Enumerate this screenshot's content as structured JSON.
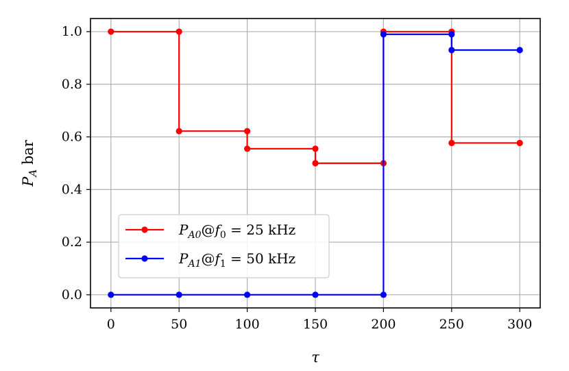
{
  "chart_data": {
    "type": "line",
    "step": "post",
    "title": "",
    "xlabel": "τ",
    "ylabel": {
      "symbol": "P",
      "subscript": "A",
      "unit": "bar"
    },
    "xlim": [
      -15,
      315
    ],
    "ylim": [
      -0.05,
      1.05
    ],
    "xticks": [
      0,
      50,
      100,
      150,
      200,
      250,
      300
    ],
    "xtick_labels": [
      "0",
      "50",
      "100",
      "150",
      "200",
      "250",
      "300"
    ],
    "yticks": [
      0.0,
      0.2,
      0.4,
      0.6,
      0.8,
      1.0
    ],
    "ytick_labels": [
      "0.0",
      "0.2",
      "0.4",
      "0.6",
      "0.8",
      "1.0"
    ],
    "grid": true,
    "legend_position": "lower-left",
    "series": [
      {
        "name": "P_A0@f_0 = 25 kHz",
        "legend": {
          "symbol": "P",
          "sub": "A0",
          "at": "@",
          "f": "f",
          "fsub": "0",
          "eq": " = 25 kHz"
        },
        "color": "#ff0000",
        "x": [
          0,
          50,
          50,
          100,
          100,
          150,
          150,
          200,
          200,
          250,
          250,
          300
        ],
        "y": [
          1.0,
          1.0,
          0.622,
          0.622,
          0.555,
          0.555,
          0.5,
          0.5,
          1.0,
          1.0,
          0.577,
          0.577
        ]
      },
      {
        "name": "P_A1@f_1 = 50 kHz",
        "legend": {
          "symbol": "P",
          "sub": "A1",
          "at": "@",
          "f": "f",
          "fsub": "1",
          "eq": " = 50 kHz"
        },
        "color": "#0000ff",
        "x": [
          0,
          50,
          100,
          150,
          200,
          200,
          250,
          250,
          300
        ],
        "y": [
          0.0,
          0.0,
          0.0,
          0.0,
          0.0,
          0.99,
          0.99,
          0.93,
          0.93
        ]
      }
    ]
  }
}
